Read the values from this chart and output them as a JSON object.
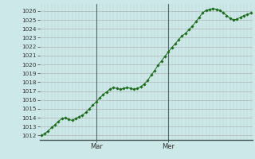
{
  "bg_color": "#cce8e8",
  "grid_color_major": "#aaaaaa",
  "grid_color_minor": "#cccccc",
  "line_color": "#1a6b1a",
  "marker_color": "#1a6b1a",
  "ylim": [
    1011.5,
    1026.8
  ],
  "yticks": [
    1012,
    1013,
    1014,
    1015,
    1016,
    1017,
    1018,
    1019,
    1020,
    1021,
    1022,
    1023,
    1024,
    1025,
    1026
  ],
  "vline_x": [
    16,
    37
  ],
  "xtick_positions": [
    16,
    37
  ],
  "xtick_labels": [
    "Mar",
    "Mer"
  ],
  "values": [
    1012.0,
    1012.2,
    1012.5,
    1012.9,
    1013.2,
    1013.6,
    1013.9,
    1014.0,
    1013.8,
    1013.7,
    1013.9,
    1014.1,
    1014.3,
    1014.6,
    1015.0,
    1015.4,
    1015.8,
    1016.2,
    1016.6,
    1016.9,
    1017.2,
    1017.4,
    1017.3,
    1017.2,
    1017.3,
    1017.4,
    1017.3,
    1017.2,
    1017.3,
    1017.5,
    1017.8,
    1018.2,
    1018.8,
    1019.3,
    1019.9,
    1020.4,
    1020.9,
    1021.4,
    1021.9,
    1022.3,
    1022.8,
    1023.2,
    1023.5,
    1023.9,
    1024.3,
    1024.8,
    1025.3,
    1025.8,
    1026.1,
    1026.2,
    1026.3,
    1026.2,
    1026.1,
    1025.8,
    1025.5,
    1025.2,
    1025.0,
    1025.1,
    1025.3,
    1025.5,
    1025.6,
    1025.8
  ]
}
